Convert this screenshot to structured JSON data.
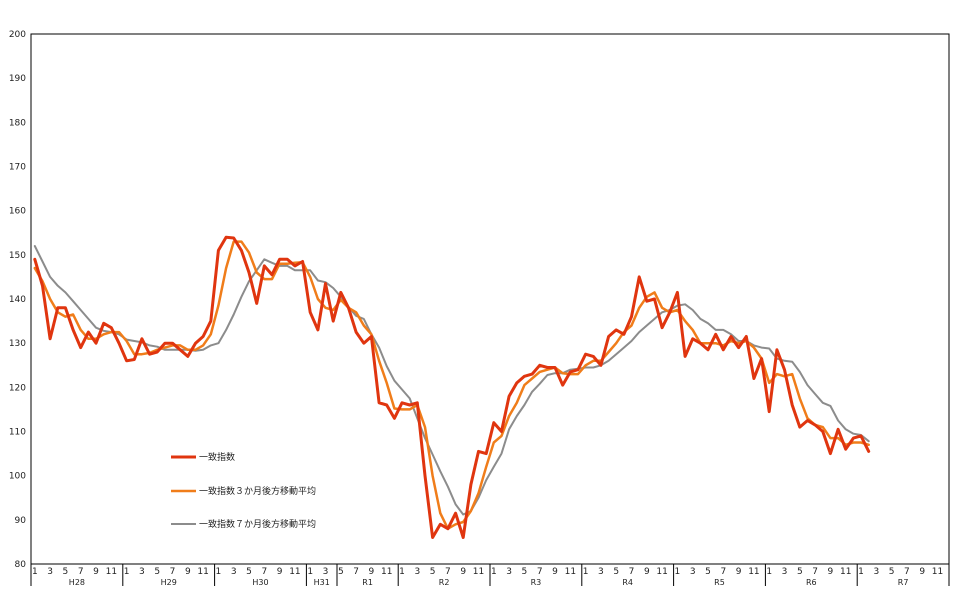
{
  "chart_data": {
    "type": "line",
    "title": "",
    "xlabel": "",
    "ylabel": "",
    "ylim": [
      80,
      200
    ],
    "yticks": [
      80,
      90,
      100,
      110,
      120,
      130,
      140,
      150,
      160,
      170,
      180,
      190,
      200
    ],
    "grid": false,
    "legend_position": "lower-left",
    "month_labels": [
      "1",
      "3",
      "5",
      "7",
      "9",
      "11",
      "1",
      "3",
      "5",
      "7",
      "9",
      "11",
      "1",
      "3",
      "5",
      "7",
      "9",
      "11",
      "1",
      "3",
      "5",
      "7",
      "9",
      "11",
      "1",
      "3",
      "5",
      "7",
      "9",
      "11",
      "1",
      "3",
      "5",
      "7",
      "9",
      "11",
      "1",
      "3",
      "5",
      "7",
      "9",
      "11",
      "1",
      "3",
      "5",
      "7",
      "9",
      "11",
      "1",
      "3",
      "5",
      "7",
      "9",
      "11",
      "1",
      "3",
      "5",
      "7",
      "9",
      "11"
    ],
    "eras": [
      {
        "label": "H28"
      },
      {
        "label": "H29"
      },
      {
        "label": "H30"
      },
      {
        "label": "H31"
      },
      {
        "label": "R1"
      },
      {
        "label": "R2"
      },
      {
        "label": "R3"
      },
      {
        "label": "R4"
      },
      {
        "label": "R5"
      },
      {
        "label": "R6"
      },
      {
        "label": "R7"
      }
    ],
    "series": [
      {
        "name": "一致指数",
        "color": "#e0350f",
        "values": [
          149,
          143,
          131,
          138,
          138,
          133,
          129,
          132.5,
          130,
          134.5,
          133.5,
          130,
          126,
          126.3,
          131,
          127.5,
          128,
          130,
          130,
          128.5,
          127,
          130,
          131.5,
          135,
          151,
          154,
          153.8,
          151,
          146,
          139,
          147.5,
          145.5,
          149,
          149,
          147.5,
          148.5,
          137,
          133,
          143.5,
          135,
          141.5,
          138,
          132.5,
          130,
          131.5,
          116.5,
          116,
          113,
          116.5,
          116,
          116.5,
          100,
          86,
          89,
          88,
          91.5,
          86,
          98,
          105.5,
          105,
          112,
          110,
          118,
          121,
          122.5,
          123,
          125,
          124.5,
          124.5,
          120.5,
          123.5,
          124,
          127.5,
          127,
          125,
          131.5,
          133,
          132,
          136,
          145,
          139.5,
          140,
          133.5,
          137,
          141.5,
          127,
          131,
          130,
          128.5,
          132,
          128.5,
          131.5,
          129,
          131.5,
          122,
          126.5,
          114.5,
          128.5,
          124,
          116,
          111,
          112.5,
          111.5,
          110,
          105,
          110.5,
          106,
          108.5,
          109,
          105.5
        ]
      },
      {
        "name": "一致指数３か月後方移動平均",
        "color": "#f07d1a",
        "values": [
          147,
          144,
          140,
          137,
          136,
          136.5,
          133,
          131,
          131,
          132,
          132.5,
          132.5,
          130.5,
          127.5,
          127.5,
          127.8,
          128.5,
          129,
          129.5,
          129.5,
          128.5,
          128.5,
          129.5,
          132,
          138.5,
          147,
          153,
          153,
          150.5,
          146,
          144.5,
          144.5,
          148,
          148,
          148.2,
          148.3,
          145,
          140,
          138,
          137.5,
          139.8,
          138,
          137,
          134,
          132,
          126,
          121,
          115.2,
          115,
          115,
          116,
          111,
          100,
          91.5,
          88,
          89,
          89.5,
          92,
          96,
          102,
          107.5,
          109,
          113.5,
          116.5,
          120.5,
          122,
          123.5,
          124,
          124.5,
          123.2,
          123,
          123,
          125,
          126,
          126,
          128,
          130,
          132.5,
          134,
          138,
          140.5,
          141.5,
          138,
          137,
          137.5,
          135,
          133,
          130,
          130,
          130,
          129.5,
          130.5,
          130,
          130.5,
          129,
          126.5,
          121,
          123,
          122.5,
          123,
          117.5,
          113,
          111.5,
          111,
          108.5,
          108.5,
          107,
          107.5,
          107.5,
          107
        ]
      },
      {
        "name": "一致指数７か月後方移動平均",
        "color": "#8c8c8c",
        "values": [
          152,
          148.5,
          145,
          143,
          141.5,
          139.5,
          137.5,
          135.5,
          133.5,
          132.8,
          132.5,
          132,
          130.8,
          130.5,
          130.2,
          129.5,
          129.2,
          128.5,
          128.5,
          128.5,
          128.5,
          128.3,
          128.5,
          129.5,
          130,
          133,
          136.5,
          140.5,
          144,
          146.5,
          149,
          148.2,
          147.5,
          147.5,
          146.5,
          146.5,
          146.5,
          144.2,
          143.8,
          142.5,
          140.5,
          138.2,
          136.2,
          135.5,
          132,
          129,
          124.8,
          121.5,
          119.5,
          117.5,
          113,
          108.5,
          104.8,
          101,
          97.5,
          93.5,
          91.2,
          92,
          95,
          99,
          102,
          105,
          110.5,
          113.5,
          116,
          119,
          120.8,
          122.8,
          123.2,
          123.2,
          124,
          124.2,
          124.5,
          124.5,
          125,
          126,
          127.5,
          129,
          130.5,
          132.5,
          134,
          135.5,
          137,
          137.5,
          138.5,
          138.8,
          137.5,
          135.5,
          134.5,
          133,
          133,
          132,
          130.5,
          130.5,
          129.5,
          129,
          128.8,
          126.5,
          126,
          125.8,
          123.5,
          120.5,
          118.5,
          116.5,
          115.8,
          112.5,
          110.5,
          109.5,
          109.2,
          107.8
        ]
      }
    ]
  }
}
